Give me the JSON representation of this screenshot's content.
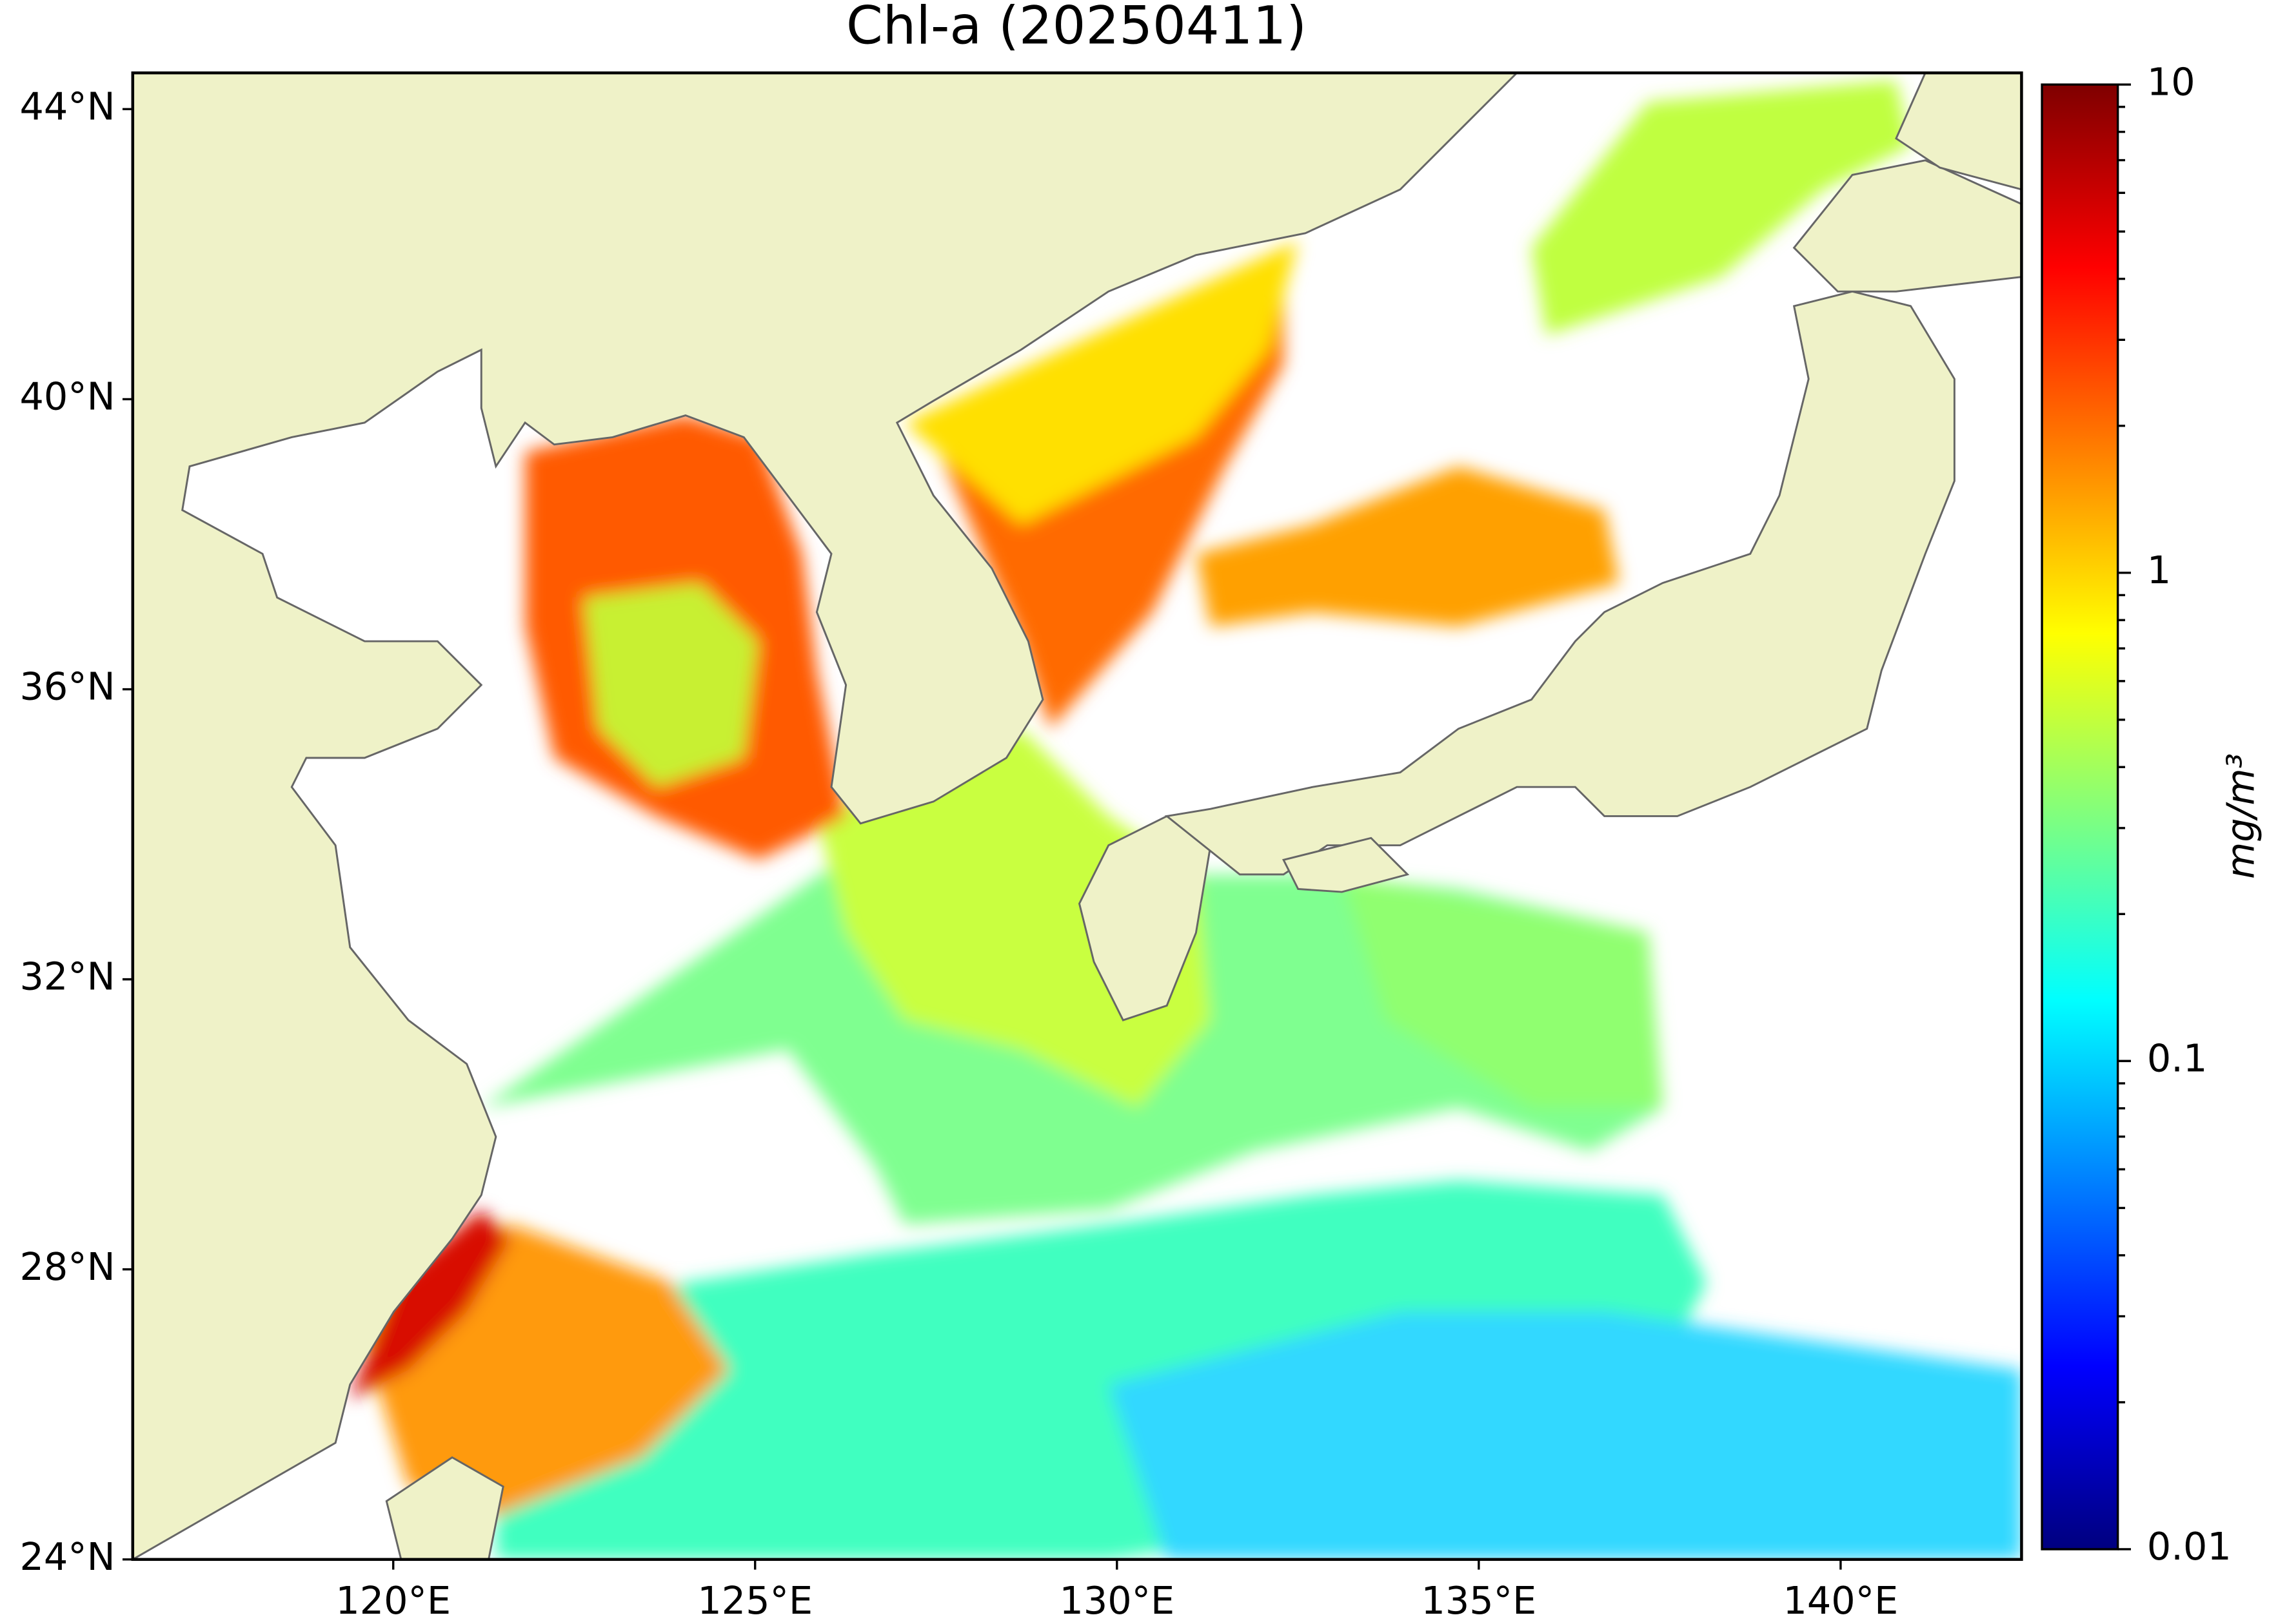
{
  "map": {
    "title": "Chl-a (20250411)",
    "lonlim": [
      116.4,
      142.5
    ],
    "latlim": [
      24,
      44.5
    ],
    "lon_ticks": [
      {
        "value": 120,
        "label": "120°E"
      },
      {
        "value": 125,
        "label": "125°E"
      },
      {
        "value": 130,
        "label": "130°E"
      },
      {
        "value": 135,
        "label": "135°E"
      },
      {
        "value": 140,
        "label": "140°E"
      }
    ],
    "lat_ticks": [
      {
        "value": 24,
        "label": "24°N"
      },
      {
        "value": 28,
        "label": "28°N"
      },
      {
        "value": 32,
        "label": "32°N"
      },
      {
        "value": 36,
        "label": "36°N"
      },
      {
        "value": 40,
        "label": "40°N"
      },
      {
        "value": 44,
        "label": "44°N"
      }
    ],
    "colorbar": {
      "label": "mg/m³",
      "scale": "log",
      "lim": [
        0.01,
        10
      ],
      "ticks": [
        0.01,
        0.1,
        1,
        10
      ],
      "colormap": [
        "#00007f",
        "#0000ff",
        "#007fff",
        "#00ffff",
        "#7fff7f",
        "#ffff00",
        "#ff7f00",
        "#ff0000",
        "#7f0000"
      ]
    }
  }
}
